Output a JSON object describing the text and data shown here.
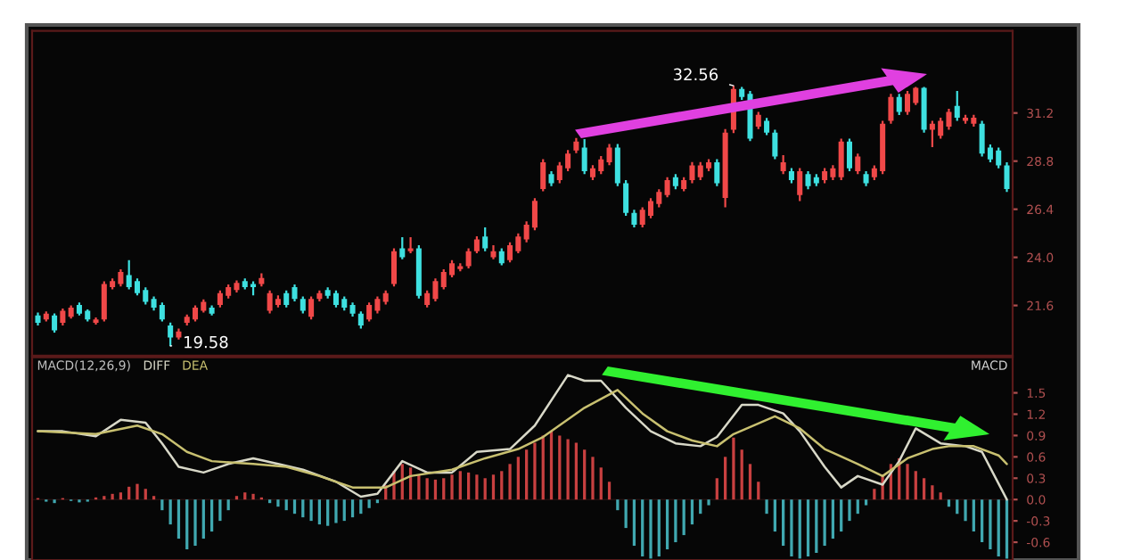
{
  "chart_data": [
    {
      "type": "candlestick",
      "tick_labels": "y",
      "categories": [
        null,
        null,
        null,
        null,
        null,
        null,
        null,
        null,
        null,
        null,
        null,
        null,
        null,
        null,
        null,
        null,
        null,
        null,
        null,
        null,
        null,
        null,
        null,
        null,
        null,
        null,
        null,
        null,
        null,
        null,
        null,
        null,
        null,
        null,
        null,
        null,
        null,
        null,
        null,
        null,
        null,
        null,
        null,
        null,
        null,
        null,
        null,
        null,
        null,
        null,
        null,
        null,
        null,
        null,
        null,
        null,
        null,
        null,
        null,
        null,
        null,
        null,
        null,
        null,
        null,
        null,
        null,
        null,
        null,
        null,
        null,
        null,
        null,
        null,
        null,
        null,
        null,
        null,
        null,
        null,
        null,
        null,
        null,
        null,
        null,
        null,
        null,
        null,
        null,
        null,
        null,
        null,
        null,
        null,
        null,
        null,
        null,
        null,
        null,
        null,
        null,
        null,
        null,
        null,
        null,
        null,
        null,
        null,
        null,
        null,
        null,
        null,
        null,
        null,
        null,
        null,
        null,
        null
      ],
      "ohlc": [
        [
          21.1,
          21.25,
          20.6,
          20.74
        ],
        [
          20.9,
          21.3,
          20.8,
          21.19
        ],
        [
          21.1,
          21.2,
          20.25,
          20.36
        ],
        [
          20.74,
          21.45,
          20.6,
          21.34
        ],
        [
          21.04,
          21.6,
          20.95,
          21.49
        ],
        [
          21.63,
          21.75,
          21.1,
          21.19
        ],
        [
          21.34,
          21.4,
          20.8,
          20.9
        ],
        [
          20.74,
          21.0,
          20.65,
          20.9
        ],
        [
          20.9,
          22.8,
          20.8,
          22.67
        ],
        [
          22.52,
          22.95,
          22.4,
          22.82
        ],
        [
          22.67,
          23.4,
          22.55,
          23.27
        ],
        [
          23.11,
          23.86,
          22.4,
          22.52
        ],
        [
          22.82,
          22.95,
          22.1,
          22.22
        ],
        [
          22.37,
          22.5,
          21.65,
          21.78
        ],
        [
          21.93,
          22.05,
          21.35,
          21.49
        ],
        [
          21.63,
          21.75,
          20.8,
          20.9
        ],
        [
          20.6,
          20.75,
          19.58,
          20.0
        ],
        [
          20.0,
          20.45,
          19.9,
          20.3
        ],
        [
          20.74,
          21.15,
          20.6,
          21.04
        ],
        [
          20.9,
          21.6,
          20.8,
          21.49
        ],
        [
          21.34,
          21.9,
          21.25,
          21.78
        ],
        [
          21.49,
          21.6,
          21.1,
          21.19
        ],
        [
          21.63,
          22.35,
          21.5,
          22.22
        ],
        [
          22.08,
          22.65,
          21.95,
          22.52
        ],
        [
          22.37,
          22.85,
          22.25,
          22.73
        ],
        [
          22.82,
          22.95,
          22.4,
          22.52
        ],
        [
          22.67,
          22.8,
          22.1,
          22.52
        ],
        [
          22.67,
          23.2,
          22.55,
          22.97
        ],
        [
          21.34,
          22.35,
          21.2,
          22.22
        ],
        [
          21.63,
          22.1,
          21.5,
          21.93
        ],
        [
          22.22,
          22.35,
          21.5,
          21.63
        ],
        [
          22.52,
          22.65,
          21.8,
          21.93
        ],
        [
          21.93,
          22.05,
          21.2,
          21.34
        ],
        [
          21.04,
          22.05,
          20.9,
          21.93
        ],
        [
          21.93,
          22.35,
          21.8,
          22.22
        ],
        [
          22.37,
          22.5,
          21.95,
          22.08
        ],
        [
          22.22,
          22.35,
          21.5,
          21.63
        ],
        [
          21.93,
          22.05,
          21.35,
          21.49
        ],
        [
          21.63,
          21.75,
          21.05,
          21.19
        ],
        [
          21.19,
          21.3,
          20.45,
          20.6
        ],
        [
          20.9,
          21.75,
          20.8,
          21.63
        ],
        [
          21.34,
          22.05,
          21.2,
          21.93
        ],
        [
          21.78,
          22.35,
          21.65,
          22.22
        ],
        [
          22.67,
          24.45,
          22.55,
          24.3
        ],
        [
          24.45,
          25.0,
          23.9,
          24.0
        ],
        [
          24.3,
          25.0,
          24.2,
          24.45
        ],
        [
          24.45,
          24.6,
          21.95,
          22.08
        ],
        [
          21.63,
          22.35,
          21.5,
          22.22
        ],
        [
          21.93,
          22.95,
          21.8,
          22.82
        ],
        [
          22.52,
          23.4,
          22.4,
          23.27
        ],
        [
          23.11,
          23.86,
          23.0,
          23.71
        ],
        [
          23.41,
          23.7,
          23.3,
          23.56
        ],
        [
          23.56,
          24.45,
          23.45,
          24.3
        ],
        [
          24.3,
          25.05,
          24.2,
          24.89
        ],
        [
          25.04,
          25.5,
          24.3,
          24.45
        ],
        [
          24.0,
          24.6,
          23.9,
          24.3
        ],
        [
          24.3,
          24.45,
          23.6,
          23.71
        ],
        [
          23.86,
          24.75,
          23.75,
          24.6
        ],
        [
          24.3,
          25.2,
          24.2,
          25.04
        ],
        [
          24.89,
          25.8,
          24.75,
          25.63
        ],
        [
          25.48,
          26.95,
          25.35,
          26.82
        ],
        [
          27.41,
          28.9,
          27.3,
          28.74
        ],
        [
          28.15,
          28.3,
          27.55,
          27.7
        ],
        [
          27.85,
          28.75,
          27.7,
          28.59
        ],
        [
          28.44,
          29.35,
          28.3,
          29.18
        ],
        [
          29.33,
          29.95,
          29.2,
          29.78
        ],
        [
          29.48,
          29.9,
          28.15,
          28.3
        ],
        [
          28.0,
          28.6,
          27.85,
          28.44
        ],
        [
          28.3,
          29.05,
          28.15,
          28.89
        ],
        [
          28.74,
          29.65,
          28.6,
          29.48
        ],
        [
          29.48,
          29.65,
          27.55,
          27.7
        ],
        [
          27.7,
          27.85,
          26.07,
          26.22
        ],
        [
          26.22,
          26.37,
          25.5,
          25.63
        ],
        [
          25.63,
          26.5,
          25.5,
          26.37
        ],
        [
          26.07,
          26.95,
          25.95,
          26.81
        ],
        [
          26.66,
          27.4,
          26.5,
          27.26
        ],
        [
          27.11,
          28.0,
          27.0,
          27.85
        ],
        [
          28.0,
          28.15,
          27.4,
          27.55
        ],
        [
          27.41,
          28.0,
          27.3,
          27.85
        ],
        [
          27.85,
          28.75,
          27.7,
          28.59
        ],
        [
          28.0,
          28.75,
          27.85,
          28.59
        ],
        [
          28.44,
          28.9,
          28.3,
          28.74
        ],
        [
          28.74,
          28.9,
          27.55,
          27.7
        ],
        [
          26.96,
          30.4,
          26.5,
          30.22
        ],
        [
          30.37,
          32.56,
          30.2,
          32.4
        ],
        [
          32.4,
          32.5,
          31.85,
          32.0
        ],
        [
          32.15,
          32.3,
          29.8,
          29.92
        ],
        [
          30.52,
          31.25,
          30.4,
          31.11
        ],
        [
          30.81,
          30.95,
          30.1,
          30.22
        ],
        [
          30.22,
          30.37,
          28.9,
          29.03
        ],
        [
          28.3,
          29.1,
          28.15,
          28.74
        ],
        [
          28.3,
          28.45,
          27.7,
          27.85
        ],
        [
          27.11,
          28.45,
          26.81,
          28.3
        ],
        [
          28.15,
          28.3,
          27.4,
          27.55
        ],
        [
          28.0,
          28.15,
          27.55,
          27.7
        ],
        [
          27.85,
          28.45,
          27.7,
          28.3
        ],
        [
          28.0,
          28.6,
          27.85,
          28.44
        ],
        [
          28.0,
          29.92,
          27.85,
          29.78
        ],
        [
          29.78,
          29.92,
          28.3,
          28.44
        ],
        [
          28.3,
          29.18,
          28.15,
          29.03
        ],
        [
          28.15,
          28.3,
          27.55,
          27.7
        ],
        [
          28.0,
          28.59,
          27.85,
          28.44
        ],
        [
          28.3,
          30.81,
          28.15,
          30.66
        ],
        [
          30.81,
          32.15,
          30.66,
          32.0
        ],
        [
          32.0,
          32.15,
          31.1,
          31.26
        ],
        [
          31.26,
          32.3,
          31.11,
          32.15
        ],
        [
          31.7,
          32.5,
          31.6,
          32.45
        ],
        [
          32.45,
          32.5,
          30.22,
          30.37
        ],
        [
          30.37,
          30.81,
          29.5,
          30.66
        ],
        [
          30.07,
          30.96,
          29.92,
          30.81
        ],
        [
          30.52,
          31.41,
          30.37,
          31.26
        ],
        [
          31.55,
          32.3,
          30.81,
          30.96
        ],
        [
          30.81,
          31.11,
          30.66,
          30.96
        ],
        [
          30.66,
          31.11,
          30.52,
          30.96
        ],
        [
          30.66,
          30.81,
          29.03,
          29.18
        ],
        [
          29.48,
          29.63,
          28.74,
          28.89
        ],
        [
          29.33,
          29.48,
          28.44,
          28.59
        ],
        [
          28.59,
          28.74,
          27.26,
          27.41
        ]
      ],
      "colors": [
        "#3ee0e0",
        "#f04848",
        "#3ee0e0",
        "#f04848",
        "#f04848",
        "#3ee0e0",
        "#3ee0e0",
        "#f04848",
        "#f04848",
        "#f04848",
        "#f04848",
        "#3ee0e0",
        "#3ee0e0",
        "#3ee0e0",
        "#3ee0e0",
        "#3ee0e0",
        "#3ee0e0",
        "#f04848",
        "#f04848",
        "#f04848",
        "#f04848",
        "#3ee0e0",
        "#f04848",
        "#f04848",
        "#f04848",
        "#3ee0e0",
        "#3ee0e0",
        "#f04848",
        "#f04848",
        "#f04848",
        "#3ee0e0",
        "#3ee0e0",
        "#3ee0e0",
        "#f04848",
        "#f04848",
        "#3ee0e0",
        "#3ee0e0",
        "#3ee0e0",
        "#3ee0e0",
        "#3ee0e0",
        "#f04848",
        "#f04848",
        "#f04848",
        "#f04848",
        "#3ee0e0",
        "#f04848",
        "#3ee0e0",
        "#f04848",
        "#f04848",
        "#f04848",
        "#f04848",
        "#f04848",
        "#f04848",
        "#f04848",
        "#3ee0e0",
        "#f04848",
        "#3ee0e0",
        "#f04848",
        "#f04848",
        "#f04848",
        "#f04848",
        "#f04848",
        "#3ee0e0",
        "#f04848",
        "#f04848",
        "#f04848",
        "#3ee0e0",
        "#f04848",
        "#f04848",
        "#f04848",
        "#3ee0e0",
        "#3ee0e0",
        "#3ee0e0",
        "#f04848",
        "#f04848",
        "#f04848",
        "#f04848",
        "#3ee0e0",
        "#f04848",
        "#f04848",
        "#f04848",
        "#f04848",
        "#3ee0e0",
        "#f04848",
        "#f04848",
        "#3ee0e0",
        "#3ee0e0",
        "#f04848",
        "#3ee0e0",
        "#3ee0e0",
        "#f04848",
        "#3ee0e0",
        "#f04848",
        "#3ee0e0",
        "#3ee0e0",
        "#f04848",
        "#f04848",
        "#f04848",
        "#3ee0e0",
        "#f04848",
        "#3ee0e0",
        "#f04848",
        "#f04848",
        "#f04848",
        "#3ee0e0",
        "#f04848",
        "#f04848",
        "#3ee0e0",
        "#f04848",
        "#f04848",
        "#f04848",
        "#3ee0e0",
        "#f04848",
        "#f04848",
        "#3ee0e0",
        "#3ee0e0",
        "#3ee0e0",
        "#3ee0e0"
      ],
      "ylim": [
        19.1,
        35.3
      ],
      "yticks": [
        {
          "value": 31.2,
          "label": "31.2"
        },
        {
          "value": 28.8,
          "label": "28.8"
        },
        {
          "value": 26.4,
          "label": "26.4"
        },
        {
          "value": 24,
          "label": "24.0"
        },
        {
          "value": 21.6,
          "label": "21.6"
        }
      ],
      "annotations": [
        "19.58",
        "32.56"
      ]
    },
    {
      "type": "bar",
      "tick_labels": "y",
      "title": "MACD(12,26,9)",
      "legend": "top left",
      "annotations": [
        "MACD"
      ],
      "categories": [
        null,
        null,
        null,
        null,
        null,
        null,
        null,
        null,
        null,
        null,
        null,
        null,
        null,
        null,
        null,
        null,
        null,
        null,
        null,
        null,
        null,
        null,
        null,
        null,
        null,
        null,
        null,
        null,
        null,
        null,
        null,
        null,
        null,
        null,
        null,
        null,
        null,
        null,
        null,
        null,
        null,
        null,
        null,
        null,
        null,
        null,
        null,
        null,
        null,
        null,
        null,
        null,
        null,
        null,
        null,
        null,
        null,
        null,
        null,
        null,
        null,
        null,
        null,
        null,
        null,
        null,
        null,
        null,
        null,
        null,
        null,
        null,
        null,
        null,
        null,
        null,
        null,
        null,
        null,
        null,
        null,
        null,
        null,
        null,
        null,
        null,
        null,
        null,
        null,
        null,
        null,
        null,
        null,
        null,
        null,
        null,
        null,
        null,
        null,
        null,
        null,
        null,
        null,
        null,
        null,
        null,
        null,
        null,
        null,
        null,
        null,
        null,
        null,
        null,
        null,
        null,
        null,
        null
      ],
      "ylim": [
        -0.85,
        2.0
      ],
      "yticks": [
        {
          "value": 1.5,
          "label": "1.5"
        },
        {
          "value": 1.2,
          "label": "1.2"
        },
        {
          "value": 0.9,
          "label": "0.9"
        },
        {
          "value": 0.6,
          "label": "0.6"
        },
        {
          "value": 0.3,
          "label": "0.3"
        },
        {
          "value": 0,
          "label": "0.0"
        },
        {
          "value": -0.3,
          "label": "-0.3"
        },
        {
          "value": -0.6,
          "label": "-0.6"
        }
      ],
      "series": [
        {
          "type": "bar",
          "values": [
            0.02,
            -0.03,
            -0.05,
            0.02,
            -0.02,
            -0.04,
            -0.03,
            0.03,
            0.05,
            0.08,
            0.1,
            0.18,
            0.22,
            0.15,
            0.05,
            -0.15,
            -0.35,
            -0.55,
            -0.7,
            -0.65,
            -0.55,
            -0.45,
            -0.3,
            -0.15,
            0.05,
            0.1,
            0.08,
            0.03,
            -0.05,
            -0.1,
            -0.15,
            -0.2,
            -0.25,
            -0.3,
            -0.35,
            -0.37,
            -0.33,
            -0.3,
            -0.25,
            -0.2,
            -0.12,
            -0.05,
            0.2,
            0.4,
            0.5,
            0.45,
            0.35,
            0.3,
            0.28,
            0.3,
            0.35,
            0.4,
            0.38,
            0.35,
            0.3,
            0.35,
            0.4,
            0.5,
            0.6,
            0.7,
            0.8,
            0.9,
            0.96,
            0.9,
            0.85,
            0.8,
            0.7,
            0.6,
            0.45,
            0.25,
            -0.15,
            -0.4,
            -0.65,
            -0.8,
            -0.83,
            -0.8,
            -0.7,
            -0.6,
            -0.5,
            -0.35,
            -0.2,
            -0.08,
            0.3,
            0.6,
            0.87,
            0.7,
            0.5,
            0.25,
            -0.2,
            -0.45,
            -0.65,
            -0.8,
            -0.83,
            -0.8,
            -0.75,
            -0.65,
            -0.55,
            -0.45,
            -0.3,
            -0.2,
            -0.08,
            0.15,
            0.35,
            0.5,
            0.58,
            0.5,
            0.4,
            0.3,
            0.2,
            0.1,
            -0.1,
            -0.2,
            -0.3,
            -0.45,
            -0.6,
            -0.7,
            -0.8,
            -0.83
          ],
          "colors": [
            "#c84040",
            "#40a8b0",
            "#40a8b0",
            "#c84040",
            "#40a8b0",
            "#40a8b0",
            "#40a8b0",
            "#c84040",
            "#c84040",
            "#c84040",
            "#c84040",
            "#c84040",
            "#c84040",
            "#c84040",
            "#c84040",
            "#40a8b0",
            "#40a8b0",
            "#40a8b0",
            "#40a8b0",
            "#40a8b0",
            "#40a8b0",
            "#40a8b0",
            "#40a8b0",
            "#40a8b0",
            "#c84040",
            "#c84040",
            "#c84040",
            "#c84040",
            "#40a8b0",
            "#40a8b0",
            "#40a8b0",
            "#40a8b0",
            "#40a8b0",
            "#40a8b0",
            "#40a8b0",
            "#40a8b0",
            "#40a8b0",
            "#40a8b0",
            "#40a8b0",
            "#40a8b0",
            "#40a8b0",
            "#40a8b0",
            "#c84040",
            "#c84040",
            "#c84040",
            "#c84040",
            "#c84040",
            "#c84040",
            "#c84040",
            "#c84040",
            "#c84040",
            "#c84040",
            "#c84040",
            "#c84040",
            "#c84040",
            "#c84040",
            "#c84040",
            "#c84040",
            "#c84040",
            "#c84040",
            "#c84040",
            "#c84040",
            "#c84040",
            "#c84040",
            "#c84040",
            "#c84040",
            "#c84040",
            "#c84040",
            "#c84040",
            "#c84040",
            "#40a8b0",
            "#40a8b0",
            "#40a8b0",
            "#40a8b0",
            "#40a8b0",
            "#40a8b0",
            "#40a8b0",
            "#40a8b0",
            "#40a8b0",
            "#40a8b0",
            "#40a8b0",
            "#40a8b0",
            "#c84040",
            "#c84040",
            "#c84040",
            "#c84040",
            "#c84040",
            "#c84040",
            "#40a8b0",
            "#40a8b0",
            "#40a8b0",
            "#40a8b0",
            "#40a8b0",
            "#40a8b0",
            "#40a8b0",
            "#40a8b0",
            "#40a8b0",
            "#40a8b0",
            "#40a8b0",
            "#40a8b0",
            "#40a8b0",
            "#c84040",
            "#c84040",
            "#c84040",
            "#c84040",
            "#c84040",
            "#c84040",
            "#c84040",
            "#c84040",
            "#c84040",
            "#40a8b0",
            "#40a8b0",
            "#40a8b0",
            "#40a8b0",
            "#40a8b0",
            "#40a8b0",
            "#40a8b0",
            "#40a8b0"
          ]
        },
        {
          "type": "line",
          "name": "DIFF",
          "color": "#d8d8c8",
          "values": [
            0.96,
            null,
            null,
            0.96,
            null,
            null,
            null,
            0.89,
            null,
            null,
            1.12,
            null,
            null,
            1.08,
            null,
            0.79,
            null,
            0.46,
            null,
            null,
            0.38,
            null,
            null,
            0.5,
            null,
            null,
            0.58,
            null,
            null,
            0.5,
            null,
            null,
            0.42,
            null,
            null,
            null,
            0.25,
            null,
            null,
            0.04,
            null,
            0.08,
            null,
            null,
            0.54,
            null,
            null,
            0.38,
            null,
            null,
            0.38,
            null,
            null,
            0.67,
            null,
            null,
            null,
            0.71,
            null,
            null,
            1.04,
            null,
            null,
            null,
            1.75,
            null,
            1.67,
            null,
            1.67,
            null,
            null,
            1.29,
            null,
            null,
            0.96,
            null,
            null,
            0.79,
            null,
            null,
            0.75,
            null,
            0.88,
            null,
            null,
            1.33,
            null,
            1.33,
            null,
            null,
            1.21,
            null,
            0.96,
            null,
            null,
            0.46,
            null,
            0.17,
            null,
            0.33,
            null,
            null,
            0.21,
            null,
            0.54,
            null,
            1.0,
            null,
            null,
            0.79,
            null,
            null,
            0.75,
            null,
            0.67,
            null,
            null,
            0.0
          ]
        },
        {
          "type": "line",
          "name": "DEA",
          "color": "#c8c070",
          "values": [
            0.96,
            null,
            null,
            null,
            null,
            null,
            null,
            0.92,
            null,
            null,
            null,
            null,
            1.04,
            null,
            null,
            0.92,
            null,
            null,
            0.67,
            null,
            null,
            0.54,
            null,
            null,
            null,
            null,
            0.5,
            null,
            null,
            null,
            0.46,
            null,
            null,
            null,
            0.33,
            null,
            null,
            null,
            0.17,
            null,
            null,
            null,
            0.17,
            null,
            null,
            0.33,
            null,
            null,
            null,
            null,
            0.42,
            null,
            null,
            null,
            0.58,
            null,
            null,
            null,
            0.71,
            null,
            null,
            0.88,
            null,
            null,
            null,
            null,
            1.29,
            null,
            null,
            null,
            1.54,
            null,
            null,
            1.21,
            null,
            null,
            0.96,
            null,
            null,
            0.83,
            null,
            null,
            0.75,
            null,
            0.92,
            null,
            null,
            null,
            null,
            1.17,
            null,
            null,
            1.0,
            null,
            null,
            0.71,
            null,
            null,
            null,
            0.5,
            null,
            null,
            0.33,
            null,
            null,
            0.58,
            null,
            null,
            0.71,
            null,
            0.75,
            null,
            null,
            0.75,
            null,
            null,
            0.62,
            0.5
          ]
        }
      ]
    }
  ]
}
